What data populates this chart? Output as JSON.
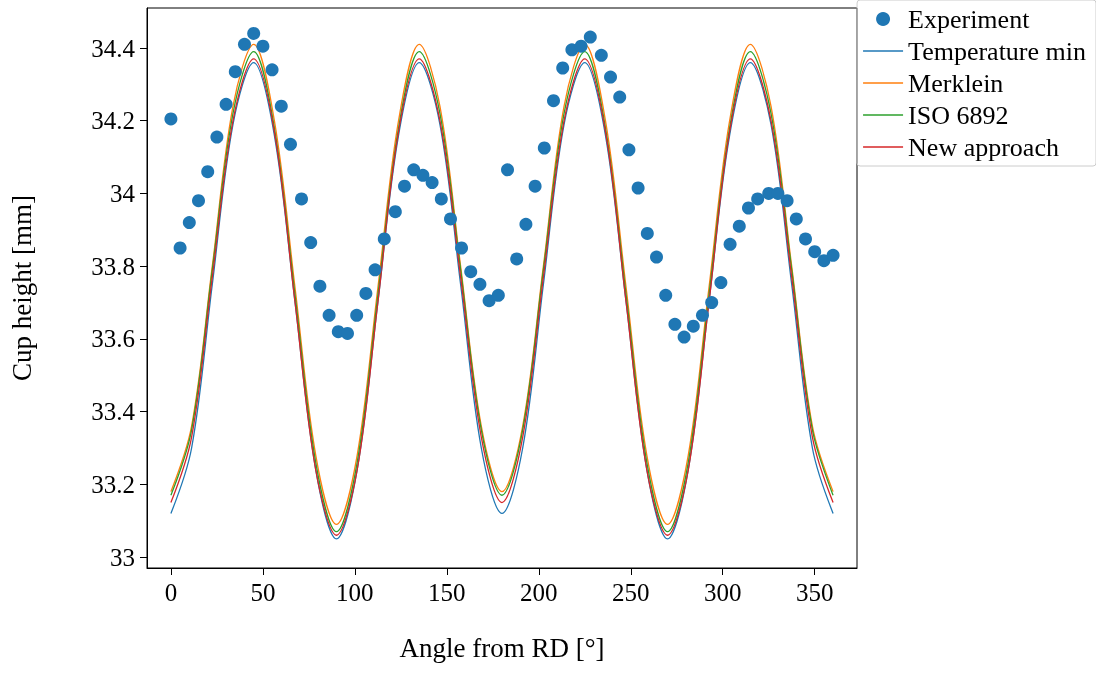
{
  "chart_data": {
    "type": "line",
    "xlabel": "Angle from RD [°]",
    "ylabel": "Cup height [mm]",
    "xlim": [
      -13,
      373
    ],
    "xticks": [
      0,
      50,
      100,
      150,
      200,
      250,
      300,
      350
    ],
    "ylim": [
      32.97,
      34.51
    ],
    "yticks": [
      33,
      33.2,
      33.4,
      33.6,
      33.8,
      34,
      34.2,
      34.4
    ],
    "grid": false,
    "legend": "top right",
    "series": [
      {
        "name": "Experiment",
        "type": "scatter",
        "marker": "circle",
        "color": "#1f77b4",
        "x": [
          0,
          5,
          10,
          15,
          20,
          25,
          30,
          35,
          40,
          45,
          50,
          55,
          60,
          65,
          71,
          76,
          81,
          86,
          91,
          96,
          101,
          106,
          111,
          116,
          122,
          127,
          132,
          137,
          142,
          147,
          152,
          158,
          163,
          168,
          173,
          178,
          183,
          188,
          193,
          198,
          203,
          208,
          213,
          218,
          223,
          228,
          234,
          239,
          244,
          249,
          254,
          259,
          264,
          269,
          274,
          279,
          284,
          289,
          294,
          299,
          304,
          309,
          314,
          319,
          325,
          330,
          335,
          340,
          345,
          350,
          355,
          360
        ],
        "values": [
          34.205,
          33.85,
          33.92,
          33.98,
          34.06,
          34.155,
          34.245,
          34.335,
          34.41,
          34.44,
          34.405,
          34.34,
          34.24,
          34.135,
          33.985,
          33.865,
          33.745,
          33.665,
          33.62,
          33.615,
          33.665,
          33.725,
          33.79,
          33.875,
          33.95,
          34.02,
          34.065,
          34.05,
          34.03,
          33.985,
          33.93,
          33.85,
          33.785,
          33.75,
          33.705,
          33.72,
          34.065,
          33.82,
          33.915,
          34.02,
          34.125,
          34.255,
          34.345,
          34.395,
          34.405,
          34.43,
          34.38,
          34.32,
          34.265,
          34.12,
          34.015,
          33.89,
          33.825,
          33.72,
          33.64,
          33.605,
          33.635,
          33.665,
          33.7,
          33.755,
          33.86,
          33.91,
          33.96,
          33.985,
          34.0,
          34.0,
          33.98,
          33.93,
          33.875,
          33.84,
          33.815,
          33.83
        ]
      },
      {
        "name": "Temperature min",
        "marker": "none",
        "color": "#1f77b4",
        "x": [
          0,
          11.25,
          22.5,
          33.75,
          45,
          56.25,
          67.5,
          78.75,
          90,
          101.25,
          112.5,
          123.75,
          135,
          146.25,
          157.5,
          168.75,
          180,
          191.25,
          202.5,
          213.75,
          225,
          236.25,
          247.5,
          258.75,
          270,
          281.25,
          292.5,
          303.75,
          315,
          326.25,
          337.5,
          348.75,
          360
        ],
        "values": [
          33.12,
          33.3,
          33.75,
          34.19,
          34.36,
          34.16,
          33.7,
          33.24,
          33.05,
          33.24,
          33.7,
          34.16,
          34.36,
          34.19,
          33.75,
          33.3,
          33.12,
          33.3,
          33.75,
          34.19,
          34.36,
          34.16,
          33.7,
          33.24,
          33.05,
          33.24,
          33.7,
          34.16,
          34.36,
          34.19,
          33.75,
          33.3,
          33.12
        ]
      },
      {
        "name": "Merklein",
        "marker": "none",
        "color": "#ff7f0e",
        "x": [
          0,
          11.25,
          22.5,
          33.75,
          45,
          56.25,
          67.5,
          78.75,
          90,
          101.25,
          112.5,
          123.75,
          135,
          146.25,
          157.5,
          168.75,
          180,
          191.25,
          202.5,
          213.75,
          225,
          236.25,
          247.5,
          258.75,
          270,
          281.25,
          292.5,
          303.75,
          315,
          326.25,
          337.5,
          348.75,
          360
        ],
        "values": [
          33.18,
          33.36,
          33.8,
          34.24,
          34.41,
          34.2,
          33.74,
          33.28,
          33.09,
          33.28,
          33.74,
          34.2,
          34.41,
          34.24,
          33.8,
          33.36,
          33.18,
          33.36,
          33.8,
          34.24,
          34.41,
          34.2,
          33.74,
          33.28,
          33.09,
          33.28,
          33.74,
          34.2,
          34.41,
          34.24,
          33.8,
          33.36,
          33.18
        ]
      },
      {
        "name": "ISO 6892",
        "marker": "none",
        "color": "#2ca02c",
        "x": [
          0,
          11.25,
          22.5,
          33.75,
          45,
          56.25,
          67.5,
          78.75,
          90,
          101.25,
          112.5,
          123.75,
          135,
          146.25,
          157.5,
          168.75,
          180,
          191.25,
          202.5,
          213.75,
          225,
          236.25,
          247.5,
          258.75,
          270,
          281.25,
          292.5,
          303.75,
          315,
          326.25,
          337.5,
          348.75,
          360
        ],
        "values": [
          33.17,
          33.35,
          33.79,
          34.22,
          34.39,
          34.18,
          33.72,
          33.26,
          33.07,
          33.26,
          33.72,
          34.18,
          34.39,
          34.22,
          33.79,
          33.35,
          33.17,
          33.35,
          33.79,
          34.22,
          34.39,
          34.18,
          33.72,
          33.26,
          33.07,
          33.26,
          33.72,
          34.18,
          34.39,
          34.22,
          33.79,
          33.35,
          33.17
        ]
      },
      {
        "name": "New approach",
        "marker": "none",
        "color": "#d62728",
        "x": [
          0,
          11.25,
          22.5,
          33.75,
          45,
          56.25,
          67.5,
          78.75,
          90,
          101.25,
          112.5,
          123.75,
          135,
          146.25,
          157.5,
          168.75,
          180,
          191.25,
          202.5,
          213.75,
          225,
          236.25,
          247.5,
          258.75,
          270,
          281.25,
          292.5,
          303.75,
          315,
          326.25,
          337.5,
          348.75,
          360
        ],
        "values": [
          33.15,
          33.33,
          33.77,
          34.2,
          34.37,
          34.17,
          33.7,
          33.24,
          33.06,
          33.24,
          33.7,
          34.17,
          34.37,
          34.2,
          33.77,
          33.33,
          33.15,
          33.33,
          33.77,
          34.2,
          34.37,
          34.17,
          33.7,
          33.24,
          33.06,
          33.24,
          33.7,
          34.17,
          34.37,
          34.2,
          33.77,
          33.33,
          33.15
        ]
      }
    ]
  }
}
